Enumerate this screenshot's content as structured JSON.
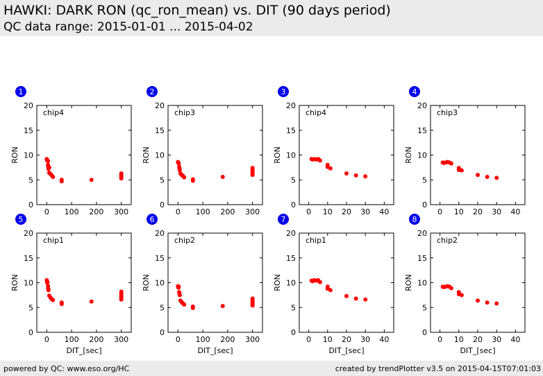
{
  "header": {
    "title": "HAWKI: DARK RON (qc_ron_mean) vs. DIT (90 days period)",
    "subtitle": "QC data range: 2015-01-01 ... 2015-04-02"
  },
  "footer": {
    "left": "powered by QC: www.eso.org/HC",
    "right": "created by trendPlotter v3.5 on 2015-04-15T07:01:03"
  },
  "colors": {
    "marker": "#ff0000",
    "badge": "#0000ee",
    "band": "#ebebeb"
  },
  "chart_data": [
    {
      "type": "scatter",
      "badge": "1",
      "annotation": "chip4",
      "ylabel": "RON",
      "xlabel": "",
      "xlim": [
        -40,
        340
      ],
      "ylim": [
        0,
        20
      ],
      "xticks": [
        0,
        100,
        200,
        300
      ],
      "yticks": [
        0,
        5,
        10,
        15,
        20
      ],
      "points": [
        [
          0,
          9.2
        ],
        [
          1,
          9.0
        ],
        [
          2,
          8.9
        ],
        [
          3,
          8.9
        ],
        [
          5,
          8.8
        ],
        [
          5,
          8.0
        ],
        [
          6,
          7.6
        ],
        [
          7,
          7.2
        ],
        [
          10,
          7.5
        ],
        [
          10,
          6.4
        ],
        [
          15,
          6.2
        ],
        [
          20,
          5.9
        ],
        [
          25,
          5.6
        ],
        [
          60,
          5.0
        ],
        [
          60,
          4.7
        ],
        [
          180,
          5.0
        ],
        [
          300,
          6.3
        ],
        [
          300,
          6.0
        ],
        [
          300,
          5.8
        ],
        [
          300,
          5.6
        ],
        [
          300,
          5.3
        ]
      ]
    },
    {
      "type": "scatter",
      "badge": "2",
      "annotation": "chip3",
      "ylabel": "RON",
      "xlabel": "",
      "xlim": [
        -40,
        340
      ],
      "ylim": [
        0,
        20
      ],
      "xticks": [
        0,
        100,
        200,
        300
      ],
      "yticks": [
        0,
        5,
        10,
        15,
        20
      ],
      "points": [
        [
          0,
          8.6
        ],
        [
          1,
          8.5
        ],
        [
          2,
          8.4
        ],
        [
          3,
          8.3
        ],
        [
          5,
          7.6
        ],
        [
          6,
          7.3
        ],
        [
          7,
          7.0
        ],
        [
          10,
          6.3
        ],
        [
          15,
          6.0
        ],
        [
          20,
          5.8
        ],
        [
          25,
          5.5
        ],
        [
          60,
          5.1
        ],
        [
          60,
          4.8
        ],
        [
          180,
          5.6
        ],
        [
          300,
          7.4
        ],
        [
          300,
          7.1
        ],
        [
          300,
          6.8
        ],
        [
          300,
          6.5
        ],
        [
          300,
          6.2
        ],
        [
          300,
          6.0
        ]
      ]
    },
    {
      "type": "scatter",
      "badge": "3",
      "annotation": "chip4",
      "ylabel": "RON",
      "xlabel": "",
      "xlim": [
        -5,
        45
      ],
      "ylim": [
        0,
        20
      ],
      "xticks": [
        0,
        10,
        20,
        30,
        40
      ],
      "yticks": [
        0,
        5,
        10,
        15,
        20
      ],
      "points": [
        [
          1.5,
          9.2
        ],
        [
          2,
          9.1
        ],
        [
          3,
          9.2
        ],
        [
          4,
          9.1
        ],
        [
          5,
          9.2
        ],
        [
          6,
          8.9
        ],
        [
          10,
          8.0
        ],
        [
          10,
          7.6
        ],
        [
          11.5,
          7.3
        ],
        [
          20,
          6.3
        ],
        [
          25,
          5.9
        ],
        [
          30,
          5.7
        ]
      ]
    },
    {
      "type": "scatter",
      "badge": "4",
      "annotation": "chip3",
      "ylabel": "RON",
      "xlabel": "",
      "xlim": [
        -5,
        45
      ],
      "ylim": [
        0,
        20
      ],
      "xticks": [
        0,
        10,
        20,
        30,
        40
      ],
      "yticks": [
        0,
        5,
        10,
        15,
        20
      ],
      "points": [
        [
          1.5,
          8.5
        ],
        [
          2,
          8.4
        ],
        [
          3,
          8.5
        ],
        [
          4,
          8.6
        ],
        [
          5,
          8.5
        ],
        [
          6,
          8.3
        ],
        [
          10,
          7.4
        ],
        [
          10,
          7.0
        ],
        [
          11.5,
          6.9
        ],
        [
          20,
          6.0
        ],
        [
          25,
          5.6
        ],
        [
          30,
          5.4
        ]
      ]
    },
    {
      "type": "scatter",
      "badge": "5",
      "annotation": "chip1",
      "ylabel": "RON",
      "xlabel": "DIT_[sec]",
      "xlim": [
        -40,
        340
      ],
      "ylim": [
        0,
        20
      ],
      "xticks": [
        0,
        100,
        200,
        300
      ],
      "yticks": [
        0,
        5,
        10,
        15,
        20
      ],
      "points": [
        [
          0,
          10.5
        ],
        [
          1,
          10.3
        ],
        [
          2,
          10.0
        ],
        [
          3,
          10.1
        ],
        [
          5,
          9.3
        ],
        [
          6,
          8.8
        ],
        [
          7,
          8.5
        ],
        [
          10,
          7.4
        ],
        [
          15,
          7.0
        ],
        [
          20,
          6.7
        ],
        [
          25,
          6.5
        ],
        [
          60,
          6.0
        ],
        [
          60,
          5.7
        ],
        [
          180,
          6.2
        ],
        [
          300,
          8.2
        ],
        [
          300,
          7.8
        ],
        [
          300,
          7.5
        ],
        [
          300,
          7.2
        ],
        [
          300,
          6.9
        ],
        [
          300,
          6.6
        ]
      ]
    },
    {
      "type": "scatter",
      "badge": "6",
      "annotation": "chip2",
      "ylabel": "RON",
      "xlabel": "DIT_[sec]",
      "xlim": [
        -40,
        340
      ],
      "ylim": [
        0,
        20
      ],
      "xticks": [
        0,
        100,
        200,
        300
      ],
      "yticks": [
        0,
        5,
        10,
        15,
        20
      ],
      "points": [
        [
          0,
          9.3
        ],
        [
          1,
          9.1
        ],
        [
          2,
          9.0
        ],
        [
          3,
          9.2
        ],
        [
          5,
          8.1
        ],
        [
          6,
          7.8
        ],
        [
          7,
          7.5
        ],
        [
          10,
          6.4
        ],
        [
          15,
          6.1
        ],
        [
          20,
          5.8
        ],
        [
          25,
          5.6
        ],
        [
          60,
          5.2
        ],
        [
          60,
          4.9
        ],
        [
          180,
          5.3
        ],
        [
          300,
          6.8
        ],
        [
          300,
          6.5
        ],
        [
          300,
          6.2
        ],
        [
          300,
          5.9
        ],
        [
          300,
          5.6
        ],
        [
          300,
          5.4
        ]
      ]
    },
    {
      "type": "scatter",
      "badge": "7",
      "annotation": "chip1",
      "ylabel": "RON",
      "xlabel": "DIT_[sec]",
      "xlim": [
        -5,
        45
      ],
      "ylim": [
        0,
        20
      ],
      "xticks": [
        0,
        10,
        20,
        30,
        40
      ],
      "yticks": [
        0,
        5,
        10,
        15,
        20
      ],
      "points": [
        [
          1.5,
          10.4
        ],
        [
          2,
          10.3
        ],
        [
          3,
          10.5
        ],
        [
          4,
          10.4
        ],
        [
          5,
          10.5
        ],
        [
          6,
          10.1
        ],
        [
          10,
          9.2
        ],
        [
          10,
          8.8
        ],
        [
          11.5,
          8.5
        ],
        [
          20,
          7.3
        ],
        [
          25,
          6.8
        ],
        [
          30,
          6.6
        ]
      ]
    },
    {
      "type": "scatter",
      "badge": "8",
      "annotation": "chip2",
      "ylabel": "RON",
      "xlabel": "DIT_[sec]",
      "xlim": [
        -5,
        45
      ],
      "ylim": [
        0,
        20
      ],
      "xticks": [
        0,
        10,
        20,
        30,
        40
      ],
      "yticks": [
        0,
        5,
        10,
        15,
        20
      ],
      "points": [
        [
          1.5,
          9.2
        ],
        [
          2,
          9.1
        ],
        [
          3,
          9.2
        ],
        [
          4,
          9.3
        ],
        [
          5,
          9.2
        ],
        [
          6,
          8.9
        ],
        [
          10,
          8.1
        ],
        [
          10,
          7.7
        ],
        [
          11.5,
          7.5
        ],
        [
          20,
          6.4
        ],
        [
          25,
          6.0
        ],
        [
          30,
          5.8
        ]
      ]
    }
  ]
}
